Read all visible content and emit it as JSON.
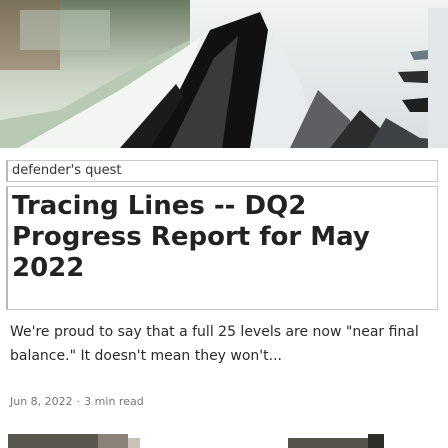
{
  "card": {
    "tag": "defender's quest",
    "title": "Tracing Lines -- DQ2 Progress Report for May 2022",
    "excerpt": "We're proud to say that a full 25 levels are now \"near final balance.\" It doesn't mean they won't...",
    "date": "Jun 8, 2022",
    "separator": "·",
    "read_time": "3 min read"
  },
  "colors": {
    "text": "#222222",
    "meta": "#777777",
    "border": "#c9c9c9"
  }
}
